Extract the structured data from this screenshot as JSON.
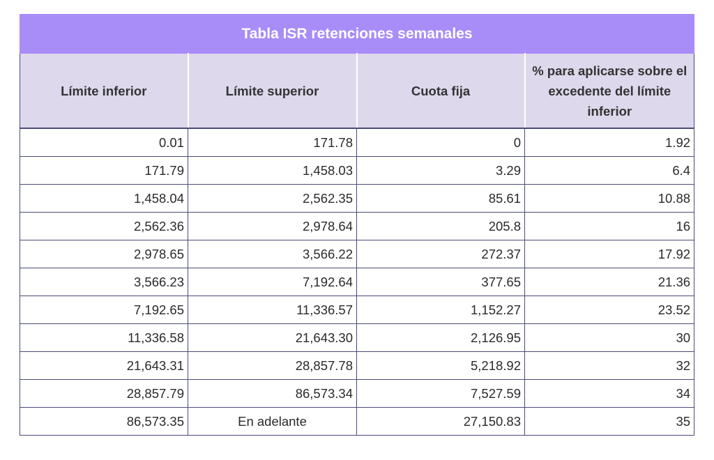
{
  "table": {
    "title": "Tabla ISR retenciones semanales",
    "headers": [
      "Límite inferior",
      "Límite superior",
      "Cuota fija",
      "% para aplicarse sobre el excedente del límite inferior"
    ],
    "rows": [
      [
        "0.01",
        "171.78",
        "0",
        "1.92"
      ],
      [
        "171.79",
        "1,458.03",
        "3.29",
        "6.4"
      ],
      [
        "1,458.04",
        "2,562.35",
        "85.61",
        "10.88"
      ],
      [
        "2,562.36",
        "2,978.64",
        "205.8",
        "16"
      ],
      [
        "2,978.65",
        "3,566.22",
        "272.37",
        "17.92"
      ],
      [
        "3,566.23",
        "7,192.64",
        "377.65",
        "21.36"
      ],
      [
        "7,192.65",
        "11,336.57",
        "1,152.27",
        "23.52"
      ],
      [
        "11,336.58",
        "21,643.30",
        "2,126.95",
        "30"
      ],
      [
        "21,643.31",
        "28,857.78",
        "5,218.92",
        "32"
      ],
      [
        "28,857.79",
        "86,573.34",
        "7,527.59",
        "34"
      ],
      [
        "86,573.35",
        "En adelante",
        "27,150.83",
        "35"
      ]
    ]
  },
  "colors": {
    "title_bg": "#a88cf7",
    "header_bg": "#ddd8ec",
    "border": "#4a4a7a"
  }
}
